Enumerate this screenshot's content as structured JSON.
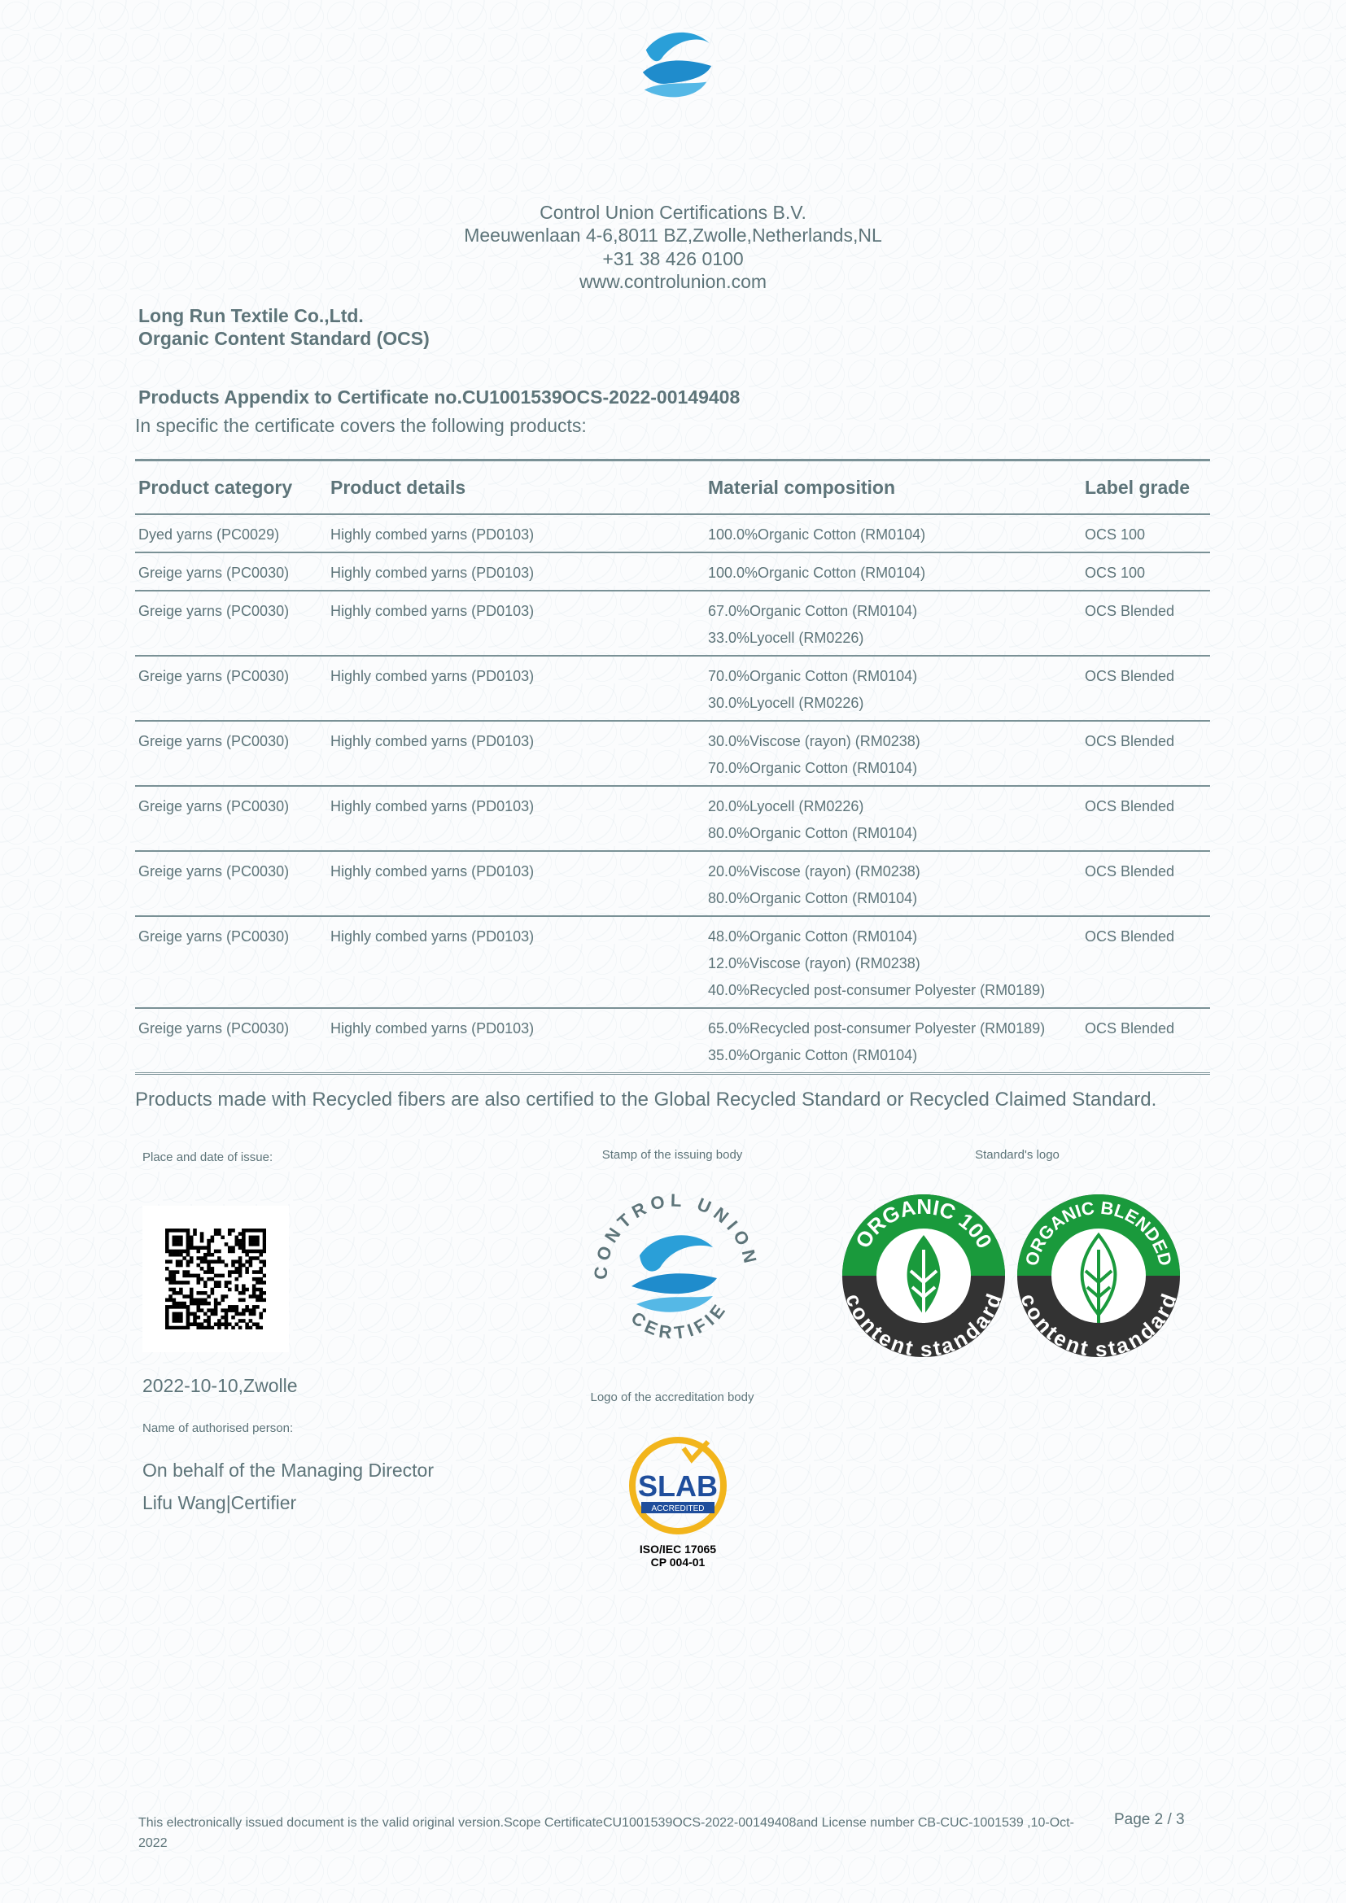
{
  "header": {
    "org": "Control Union Certifications B.V.",
    "address": "Meeuwenlaan 4-6,8011 BZ,Zwolle,Netherlands,NL",
    "phone": "+31 38 426 0100",
    "website": "www.controlunion.com"
  },
  "company": "Long Run Textile Co.,Ltd.",
  "standard": "Organic Content Standard (OCS)",
  "appendix_title": "Products Appendix to Certificate no.CU1001539OCS-2022-00149408",
  "appendix_intro": "In specific the certificate covers the following products:",
  "table": {
    "headers": [
      "Product category",
      "Product details",
      "Material composition",
      "Label grade"
    ],
    "rows": [
      {
        "category": "Dyed yarns (PC0029)",
        "details": "Highly combed yarns (PD0103)",
        "composition": [
          "100.0%Organic Cotton (RM0104)"
        ],
        "grade": "OCS 100"
      },
      {
        "category": "Greige yarns (PC0030)",
        "details": "Highly combed yarns (PD0103)",
        "composition": [
          "100.0%Organic Cotton (RM0104)"
        ],
        "grade": "OCS 100"
      },
      {
        "category": "Greige yarns (PC0030)",
        "details": "Highly combed yarns (PD0103)",
        "composition": [
          "67.0%Organic Cotton (RM0104)",
          "33.0%Lyocell (RM0226)"
        ],
        "grade": "OCS Blended"
      },
      {
        "category": "Greige yarns (PC0030)",
        "details": "Highly combed yarns (PD0103)",
        "composition": [
          "70.0%Organic Cotton (RM0104)",
          "30.0%Lyocell (RM0226)"
        ],
        "grade": "OCS Blended"
      },
      {
        "category": "Greige yarns (PC0030)",
        "details": "Highly combed yarns (PD0103)",
        "composition": [
          "30.0%Viscose (rayon) (RM0238)",
          "70.0%Organic Cotton (RM0104)"
        ],
        "grade": "OCS Blended"
      },
      {
        "category": "Greige yarns (PC0030)",
        "details": "Highly combed yarns (PD0103)",
        "composition": [
          "20.0%Lyocell (RM0226)",
          "80.0%Organic Cotton (RM0104)"
        ],
        "grade": "OCS Blended"
      },
      {
        "category": "Greige yarns (PC0030)",
        "details": "Highly combed yarns (PD0103)",
        "composition": [
          "20.0%Viscose (rayon) (RM0238)",
          "80.0%Organic Cotton (RM0104)"
        ],
        "grade": "OCS Blended"
      },
      {
        "category": "Greige yarns (PC0030)",
        "details": "Highly combed yarns (PD0103)",
        "composition": [
          "48.0%Organic Cotton (RM0104)",
          "12.0%Viscose (rayon) (RM0238)",
          "40.0%Recycled post-consumer Polyester (RM0189)"
        ],
        "grade": "OCS Blended"
      },
      {
        "category": "Greige yarns (PC0030)",
        "details": "Highly combed yarns (PD0103)",
        "composition": [
          "65.0%Recycled post-consumer Polyester (RM0189)",
          "35.0%Organic Cotton (RM0104)"
        ],
        "grade": "OCS Blended"
      }
    ]
  },
  "recycled_note": "Products made with Recycled fibers are also certified to the Global Recycled Standard or Recycled Claimed Standard.",
  "issue": {
    "place_label": "Place and date of issue:",
    "place_date": "2022-10-10,Zwolle",
    "name_label": "Name of authorised person:",
    "on_behalf": "On behalf of the Managing Director",
    "person": "Lifu Wang|Certifier"
  },
  "stamp_label": "Stamp of the issuing body",
  "stamp_text": {
    "top": "CONTROL UNION",
    "bottom": "CERTIFIED"
  },
  "standards_label": "Standard's logo",
  "standard_logos": [
    {
      "top": "ORGANIC 100",
      "bottom": "content standard"
    },
    {
      "top": "ORGANIC BLENDED",
      "bottom": "content standard"
    }
  ],
  "accreditation_label": "Logo of the accreditation body",
  "accreditation": {
    "name": "SLAB",
    "sub": "ACCREDITED",
    "iso": "ISO/IEC 17065",
    "cp": "CP 004-01"
  },
  "footer": {
    "disclaimer": "This electronically issued document is the valid original version.Scope CertificateCU1001539OCS-2022-00149408and License number CB-CUC-1001539 ,10-Oct-2022",
    "page_label": "Page 2 / 3"
  },
  "colors": {
    "text": "#5d7479",
    "brand_blue": "#2a9fd8",
    "ocs_green": "#1a9a3c",
    "slab_yellow": "#f2b51c",
    "slab_blue": "#1f4e9c"
  }
}
